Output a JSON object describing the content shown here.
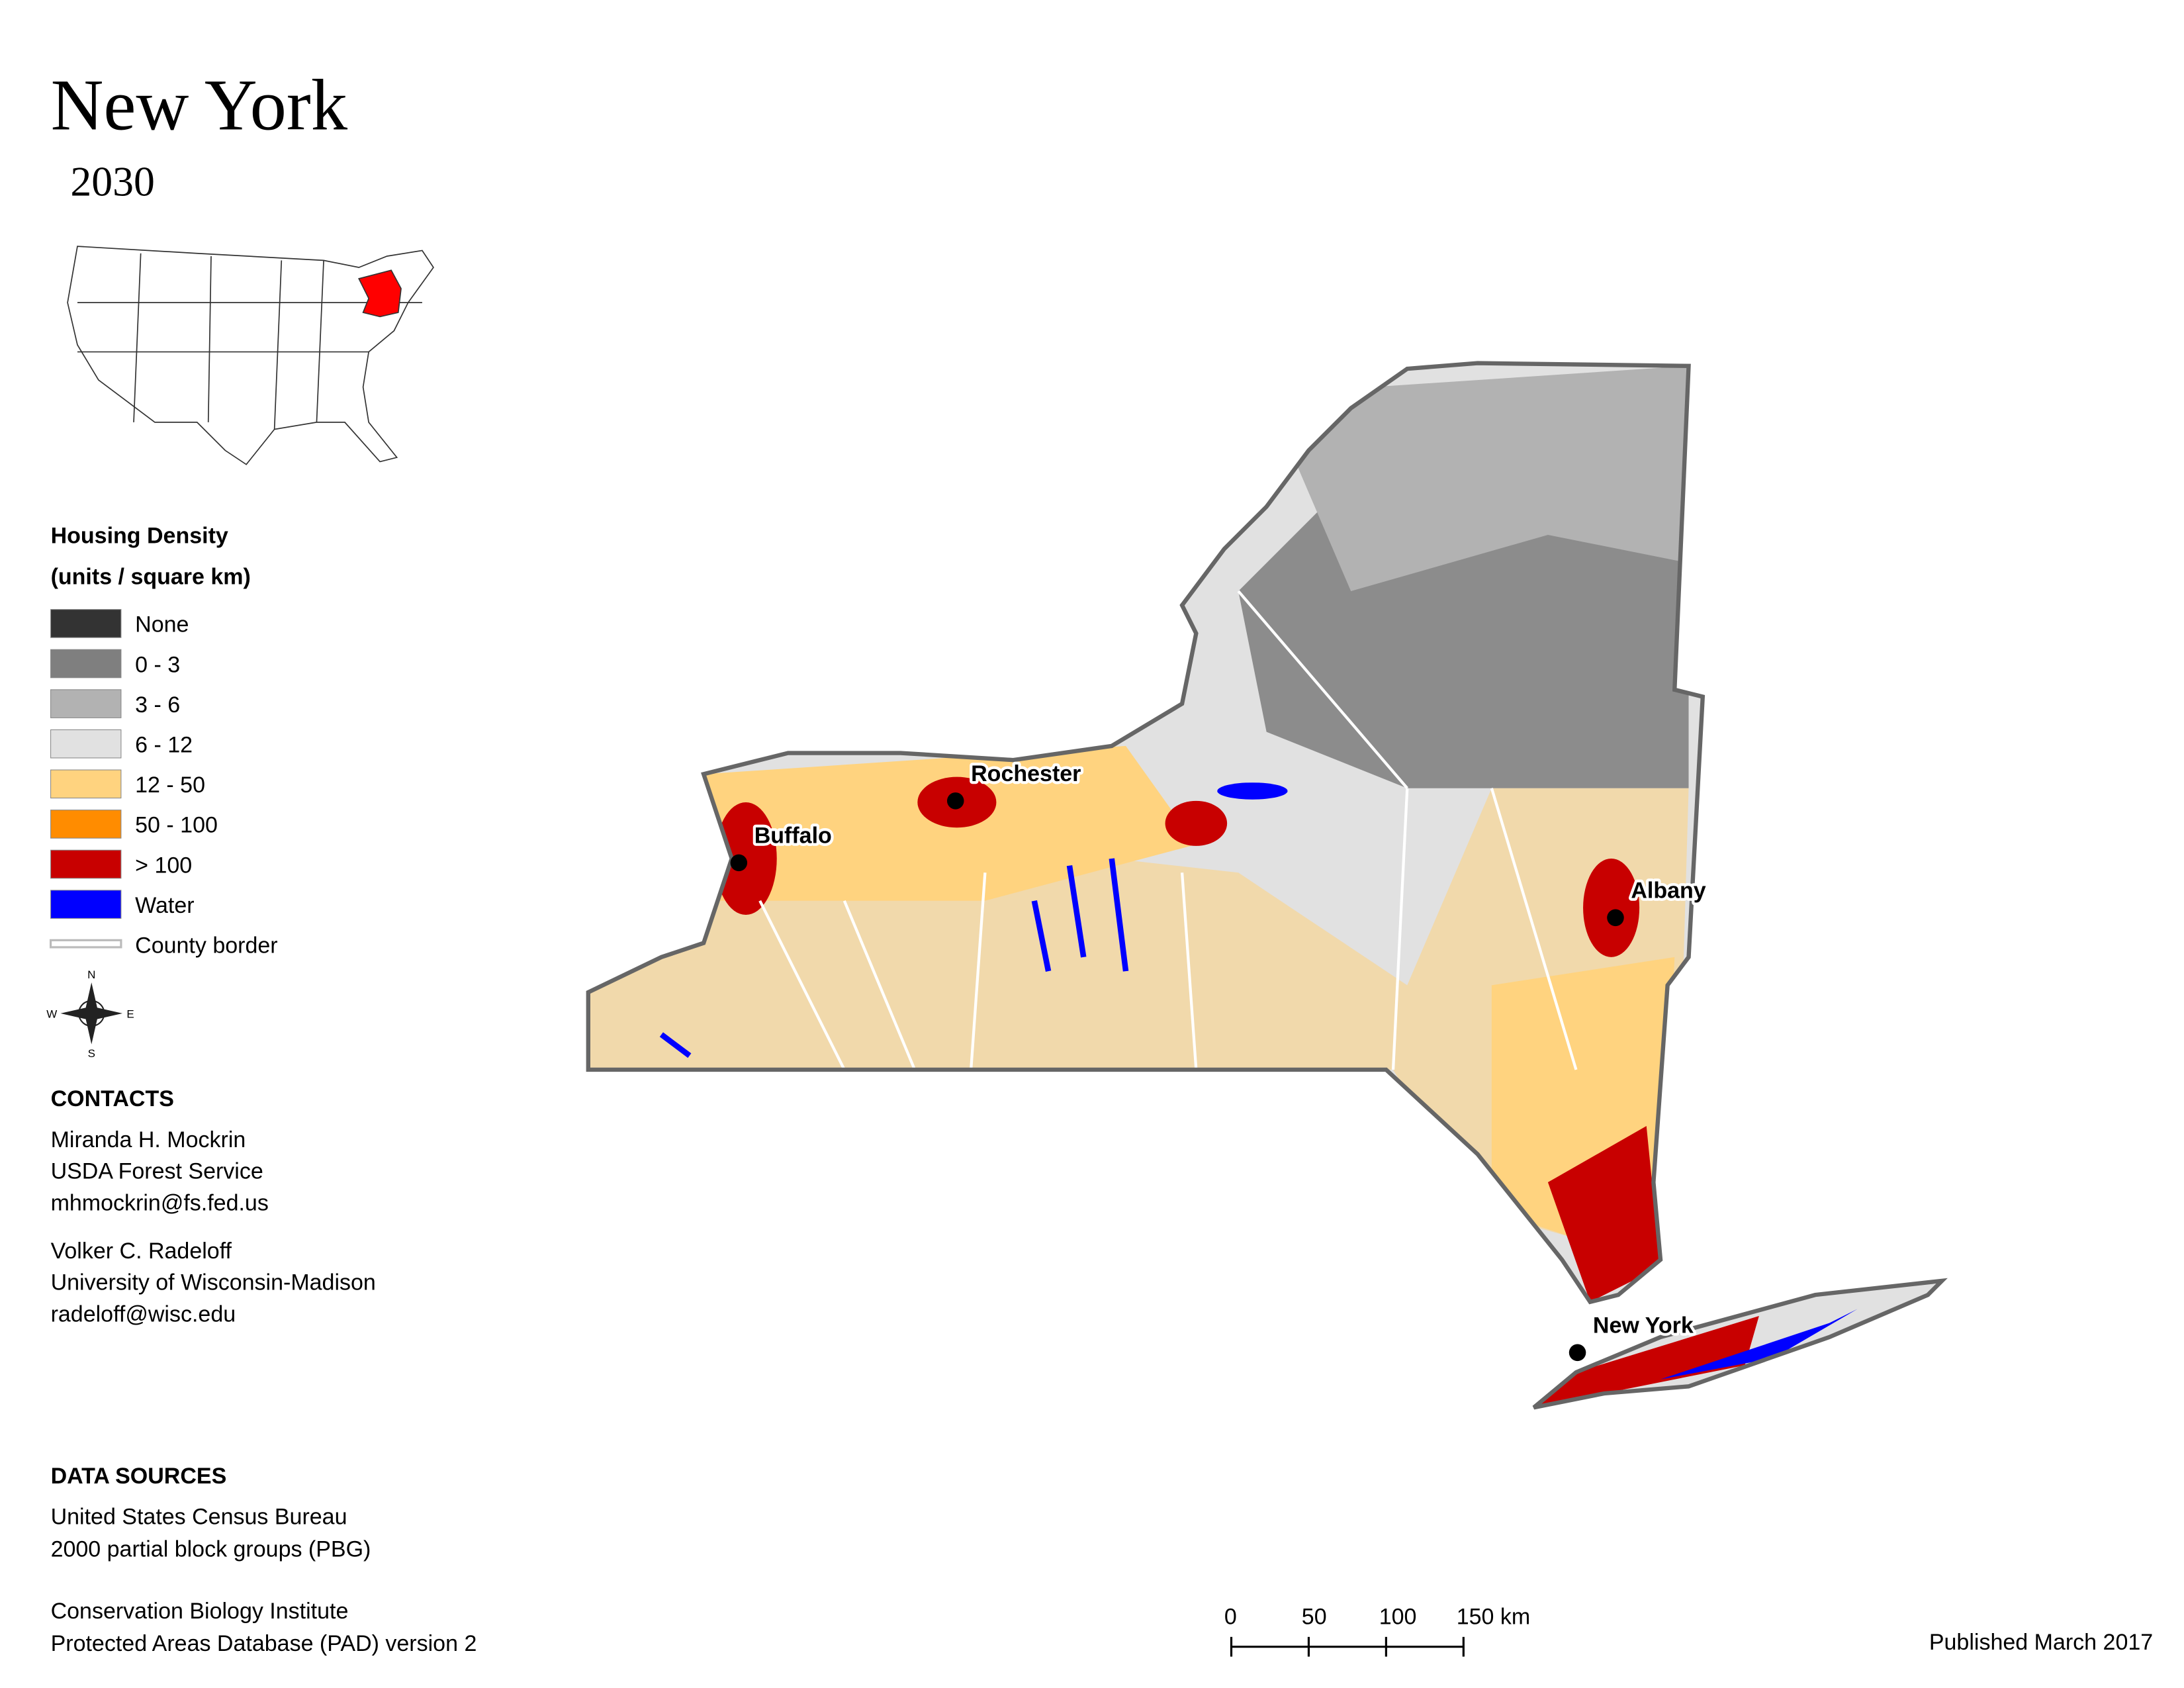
{
  "header": {
    "title": "New York",
    "subtitle": "2030"
  },
  "legend": {
    "title": "Housing Density",
    "units": "(units / square km)",
    "items": [
      {
        "label": "None",
        "color": "#333333"
      },
      {
        "label": "0 - 3",
        "color": "#7f7f7f"
      },
      {
        "label": "3 - 6",
        "color": "#b2b2b2"
      },
      {
        "label": "6 - 12",
        "color": "#e1e1e1"
      },
      {
        "label": "12 - 50",
        "color": "#ffd37f"
      },
      {
        "label": "50 - 100",
        "color": "#ff8c00"
      },
      {
        "label": "> 100",
        "color": "#c80000"
      },
      {
        "label": "Water",
        "color": "#0000ff"
      },
      {
        "label": "County border",
        "color": "#ffffff"
      }
    ]
  },
  "compass": {
    "n": "N",
    "e": "E",
    "s": "S",
    "w": "W"
  },
  "contacts": {
    "heading": "CONTACTS",
    "people": [
      [
        "Miranda H. Mockrin",
        "USDA Forest Service",
        "mhmockrin@fs.fed.us"
      ],
      [
        "Volker C. Radeloff",
        "University of Wisconsin-Madison",
        "radeloff@wisc.edu"
      ]
    ]
  },
  "data_sources": {
    "heading": "DATA SOURCES",
    "groups": [
      [
        "United States Census Bureau",
        "2000 partial block groups (PBG)"
      ],
      [
        "Conservation Biology Institute",
        "Protected Areas Database (PAD) version 2"
      ]
    ]
  },
  "cities": [
    "Rochester",
    "Buffalo",
    "Albany",
    "New York"
  ],
  "scale_bar": {
    "labels": [
      "0",
      "50",
      "100",
      "150 km"
    ]
  },
  "footer": {
    "published": "Published March 2017"
  }
}
